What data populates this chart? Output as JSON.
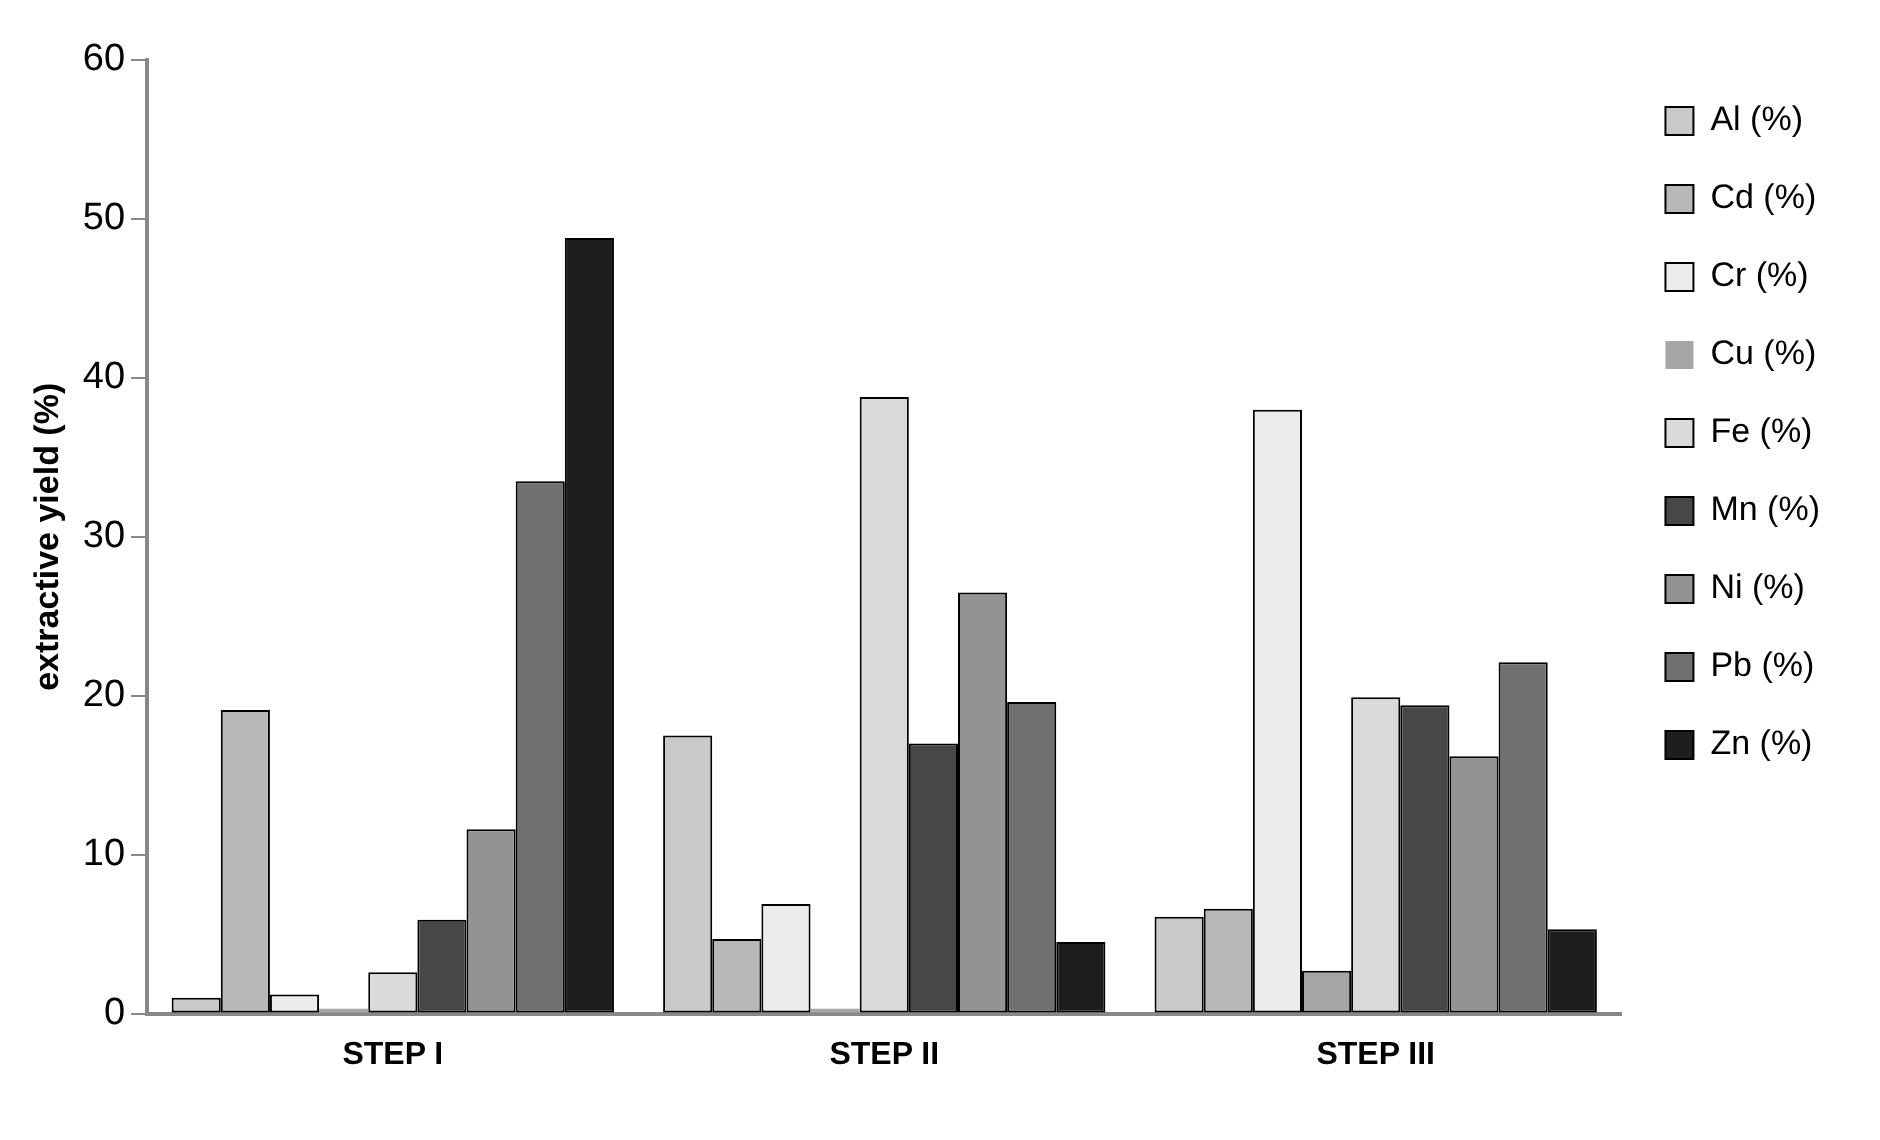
{
  "chart_data": {
    "type": "bar",
    "ylabel": "extractive yield (%)",
    "categories": [
      "STEP I",
      "STEP II",
      "STEP III"
    ],
    "series": [
      {
        "name": "Al (%)",
        "color": "#c9c9c9",
        "values": [
          1.0,
          17.5,
          6.1
        ]
      },
      {
        "name": "Cd (%)",
        "color": "#b8b8b8",
        "values": [
          19.1,
          4.7,
          6.6
        ]
      },
      {
        "name": "Cr (%)",
        "color": "#ececec",
        "values": [
          1.2,
          6.9,
          38.0
        ]
      },
      {
        "name": "Cu (%)",
        "color": "#a6a6a6",
        "values": [
          0.3,
          0.3,
          2.7
        ]
      },
      {
        "name": "Fe (%)",
        "color": "#dadada",
        "values": [
          2.6,
          38.8,
          19.9
        ]
      },
      {
        "name": "Mn (%)",
        "color": "#474747",
        "values": [
          5.9,
          17.0,
          19.4
        ]
      },
      {
        "name": "Ni (%)",
        "color": "#939393",
        "values": [
          11.6,
          26.5,
          16.2
        ]
      },
      {
        "name": "Pb (%)",
        "color": "#707070",
        "values": [
          33.5,
          19.6,
          22.1
        ]
      },
      {
        "name": "Zn (%)",
        "color": "#1e1e1e",
        "values": [
          48.8,
          4.5,
          5.3
        ]
      }
    ],
    "ylim": [
      0,
      60
    ],
    "yticks": [
      0,
      10,
      20,
      30,
      40,
      50,
      60
    ],
    "grid": false,
    "legend": "right"
  }
}
